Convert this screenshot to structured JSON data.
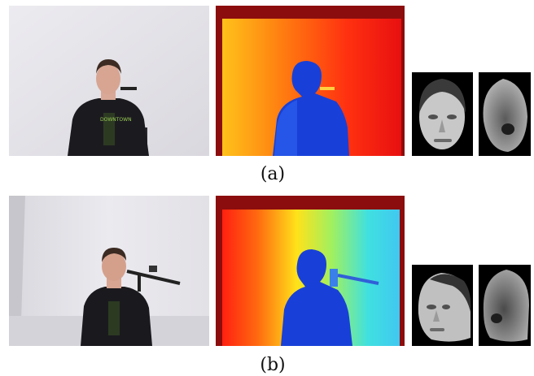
{
  "figure": {
    "rows": [
      {
        "caption": "(a)"
      },
      {
        "caption": "(b)"
      }
    ]
  }
}
